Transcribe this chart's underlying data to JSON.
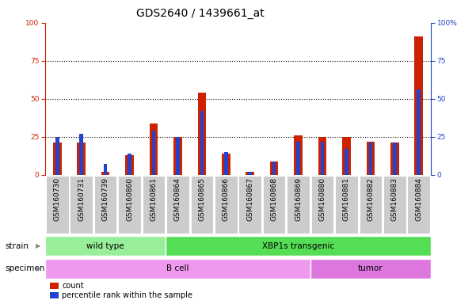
{
  "title": "GDS2640 / 1439661_at",
  "samples": [
    "GSM160730",
    "GSM160731",
    "GSM160739",
    "GSM160860",
    "GSM160861",
    "GSM160864",
    "GSM160865",
    "GSM160866",
    "GSM160867",
    "GSM160868",
    "GSM160869",
    "GSM160880",
    "GSM160881",
    "GSM160882",
    "GSM160883",
    "GSM160884"
  ],
  "count_values": [
    21,
    21,
    2,
    13,
    34,
    25,
    54,
    14,
    2,
    9,
    26,
    25,
    25,
    22,
    21,
    91
  ],
  "percentile_values": [
    25,
    27,
    7,
    14,
    29,
    25,
    42,
    15,
    2,
    9,
    22,
    22,
    17,
    21,
    21,
    56
  ],
  "ylim_left": [
    0,
    100
  ],
  "ylim_right": [
    0,
    100
  ],
  "yticks": [
    0,
    25,
    50,
    75,
    100
  ],
  "bar_color_count": "#cc2200",
  "bar_color_pct": "#2244cc",
  "grid_color": "black",
  "strain_labels": [
    {
      "text": "wild type",
      "start": 0,
      "end": 4,
      "color": "#99ee99"
    },
    {
      "text": "XBP1s transgenic",
      "start": 5,
      "end": 15,
      "color": "#55dd55"
    }
  ],
  "specimen_labels": [
    {
      "text": "B cell",
      "start": 0,
      "end": 10,
      "color": "#ee99ee"
    },
    {
      "text": "tumor",
      "start": 11,
      "end": 15,
      "color": "#dd77dd"
    }
  ],
  "strain_row_label": "strain",
  "specimen_row_label": "specimen",
  "legend_count_label": "count",
  "legend_pct_label": "percentile rank within the sample",
  "background_color": "#ffffff",
  "tick_bg_color": "#cccccc",
  "left_axis_color": "#cc2200",
  "right_axis_color": "#2244cc",
  "title_fontsize": 10,
  "tick_fontsize": 6.5,
  "label_fontsize": 7.5
}
